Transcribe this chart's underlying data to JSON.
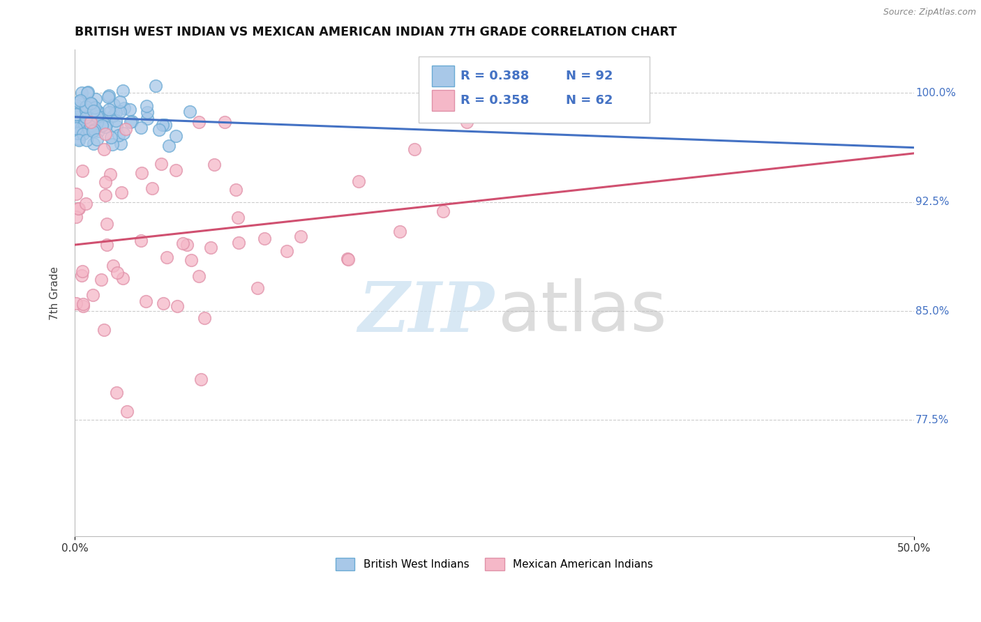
{
  "title": "BRITISH WEST INDIAN VS MEXICAN AMERICAN INDIAN 7TH GRADE CORRELATION CHART",
  "source": "Source: ZipAtlas.com",
  "ylabel": "7th Grade",
  "y_ticks": [
    "77.5%",
    "85.0%",
    "92.5%",
    "100.0%"
  ],
  "y_tick_values": [
    0.775,
    0.85,
    0.925,
    1.0
  ],
  "xlim": [
    0.0,
    0.5
  ],
  "ylim": [
    0.695,
    1.03
  ],
  "series1_name": "British West Indians",
  "series1_color": "#a8c8e8",
  "series1_edge": "#6aaad4",
  "series2_name": "Mexican American Indians",
  "series2_color": "#f5b8c8",
  "series2_edge": "#e090a8",
  "series1_R": 0.388,
  "series1_N": 92,
  "series2_R": 0.358,
  "series2_N": 62,
  "background_color": "#ffffff",
  "grid_color": "#cccccc",
  "trend1_color": "#4472c4",
  "trend2_color": "#d05070",
  "tick_color": "#4472c4",
  "title_color": "#111111",
  "source_color": "#888888",
  "watermark_zip_color": "#c8dff0",
  "watermark_atlas_color": "#c0c0c0"
}
